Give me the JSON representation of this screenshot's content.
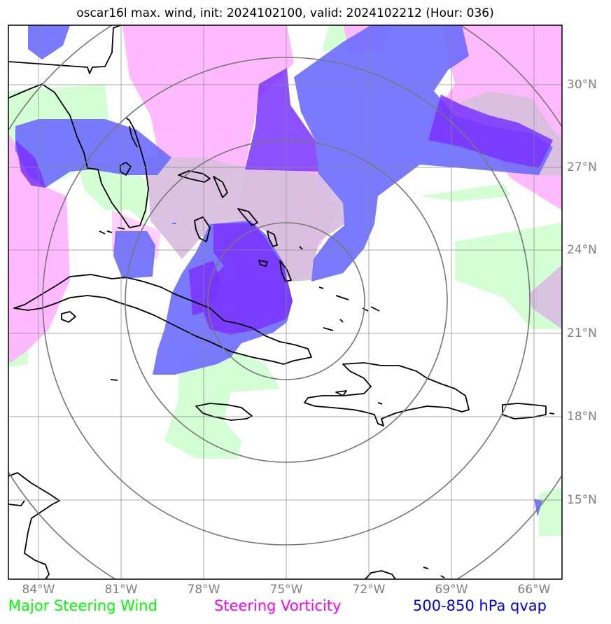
{
  "title": "oscar16l max. wind, init: 2024102100, valid: 2024102212 (Hour: 036)",
  "label_color": "#808080",
  "lon_labels": [
    "84°W",
    "81°W",
    "78°W",
    "75°W",
    "72°W",
    "69°W",
    "66°W"
  ],
  "lat_labels": [
    "30°N",
    "27°N",
    "24°N",
    "21°N",
    "18°N",
    "15°N"
  ],
  "legend": [
    {
      "label": "Major Steering Wind",
      "color": "#00ff00"
    },
    {
      "label": "Steering Vorticity",
      "color": "#ff00ff"
    },
    {
      "label": "500-850 hPa qvap",
      "color": "#0000e0"
    }
  ],
  "layer_colors": {
    "wind": "#ccffcc",
    "vorticity": "#ffb3ff",
    "qvap": "#6b6bff",
    "qvap_strong": "#7a33ff",
    "overlap": "#d9bfdf"
  }
}
